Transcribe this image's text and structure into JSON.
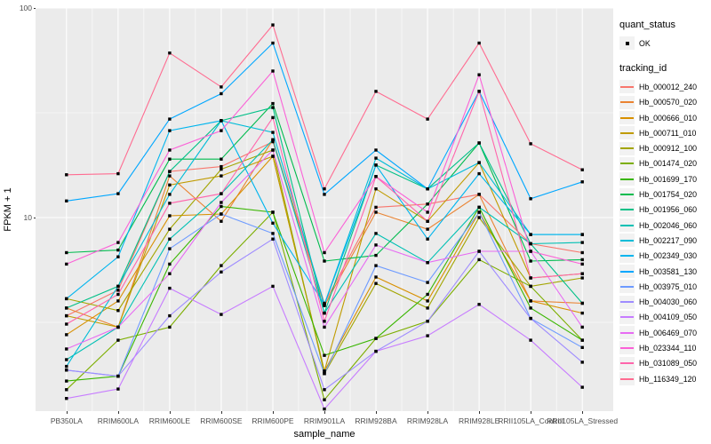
{
  "figure": {
    "y_axis": {
      "title": "FPKM + 1",
      "ticks": [
        {
          "label": "100",
          "value": 100
        },
        {
          "label": "10",
          "value": 10
        }
      ]
    },
    "x_axis": {
      "title": "sample_name"
    },
    "legend": {
      "quant_status": {
        "title": "quant_status",
        "items": [
          {
            "label": "OK"
          }
        ]
      },
      "tracking_id": {
        "title": "tracking_id"
      }
    },
    "colors": {
      "panel_bg": "#EBEBEB",
      "grid": "#FFFFFF",
      "marker": "#000000",
      "tick_text": "#4D4D4D",
      "key_bg": "#F2F2F2"
    }
  },
  "chart_data": {
    "type": "line",
    "title": "",
    "xlabel": "sample_name",
    "ylabel": "FPKM + 1",
    "y_scale": "log10",
    "ylim": [
      1.15,
      99
    ],
    "grid": true,
    "legend_position": "right",
    "x_categories": [
      "PB350LA",
      "RRIM600LA",
      "RRIM600LE",
      "RRIM600SE",
      "RRIM600PE",
      "RRIM901LA",
      "RRIM928BA",
      "RRIM928LA",
      "RRIM928LE",
      "RRII105LA_Control",
      "RRII105LA_Stressed"
    ],
    "series": [
      {
        "name": "Hb_000012_240",
        "color": "#F8766D",
        "values": [
          3.4,
          4.5,
          16.6,
          17.5,
          23.0,
          3.9,
          11.2,
          11.6,
          12.9,
          7.5,
          6.8
        ]
      },
      {
        "name": "Hb_000570_020",
        "color": "#EA8331",
        "values": [
          3.7,
          3.0,
          15.8,
          9.6,
          23.5,
          3.8,
          10.6,
          8.8,
          12.9,
          4.0,
          3.9
        ]
      },
      {
        "name": "Hb_000666_010",
        "color": "#D89000",
        "values": [
          2.76,
          4.0,
          10.2,
          10.4,
          19.6,
          1.85,
          5.2,
          4.0,
          10.6,
          4.0,
          3.5
        ]
      },
      {
        "name": "Hb_000711_010",
        "color": "#C09B00",
        "values": [
          3.4,
          3.0,
          14.3,
          15.8,
          19.6,
          1.85,
          13.7,
          9.6,
          18.3,
          5.15,
          5.4
        ]
      },
      {
        "name": "Hb_000912_100",
        "color": "#A3A500",
        "values": [
          4.1,
          3.6,
          8.8,
          17.0,
          21.0,
          1.8,
          4.85,
          3.7,
          10.0,
          4.7,
          5.15
        ]
      },
      {
        "name": "Hb_001474_020",
        "color": "#7CAE00",
        "values": [
          1.51,
          2.6,
          3.0,
          5.9,
          10.6,
          1.35,
          2.65,
          3.2,
          6.3,
          4.7,
          2.6
        ]
      },
      {
        "name": "Hb_001699_170",
        "color": "#39B600",
        "values": [
          1.66,
          1.75,
          6.0,
          11.3,
          10.6,
          2.2,
          2.65,
          4.3,
          11.2,
          3.7,
          2.6
        ]
      },
      {
        "name": "Hb_001754_020",
        "color": "#00BB4E",
        "values": [
          6.8,
          7.0,
          19.0,
          19.0,
          35.0,
          6.2,
          6.6,
          11.6,
          22.7,
          6.2,
          6.3
        ]
      },
      {
        "name": "Hb_001956_060",
        "color": "#00C087",
        "values": [
          3.7,
          4.7,
          16.6,
          29.0,
          33.5,
          3.5,
          17.8,
          13.7,
          22.7,
          7.5,
          3.9
        ]
      },
      {
        "name": "Hb_002046_060",
        "color": "#00C0B4",
        "values": [
          2.1,
          3.0,
          7.9,
          13.0,
          23.5,
          3.5,
          8.4,
          6.1,
          11.2,
          7.5,
          7.6
        ]
      },
      {
        "name": "Hb_002217_090",
        "color": "#00BCD8",
        "values": [
          1.95,
          4.7,
          12.9,
          29.0,
          25.5,
          3.85,
          19.2,
          13.7,
          18.3,
          8.3,
          8.3
        ]
      },
      {
        "name": "Hb_002349_030",
        "color": "#00B5EE",
        "values": [
          4.1,
          6.5,
          26.0,
          29.0,
          9.4,
          3.85,
          17.8,
          7.9,
          16.2,
          8.3,
          8.3
        ]
      },
      {
        "name": "Hb_003581_130",
        "color": "#00A7FF",
        "values": [
          12.0,
          13.0,
          29.5,
          39.0,
          68.0,
          12.9,
          21.0,
          13.7,
          40.0,
          12.3,
          14.8
        ]
      },
      {
        "name": "Hb_003975_010",
        "color": "#6E9BFF",
        "values": [
          1.87,
          1.75,
          7.1,
          10.4,
          8.4,
          1.8,
          5.9,
          4.9,
          10.6,
          3.3,
          2.4
        ]
      },
      {
        "name": "Hb_004030_060",
        "color": "#9F8CFF",
        "values": [
          1.87,
          1.75,
          3.4,
          5.5,
          7.9,
          1.51,
          2.3,
          3.2,
          6.9,
          3.3,
          2.04
        ]
      },
      {
        "name": "Hb_004109_050",
        "color": "#C77CFF",
        "values": [
          1.37,
          1.52,
          4.6,
          3.45,
          4.7,
          1.22,
          2.3,
          2.73,
          3.85,
          2.6,
          1.55
        ]
      },
      {
        "name": "Hb_006469_070",
        "color": "#E76BF3",
        "values": [
          2.36,
          3.0,
          5.4,
          11.8,
          21.0,
          3.0,
          7.4,
          6.1,
          6.9,
          6.9,
          3.0
        ]
      },
      {
        "name": "Hb_023344_110",
        "color": "#FB61D7",
        "values": [
          6.0,
          7.6,
          21.0,
          26.0,
          50.0,
          6.8,
          15.7,
          10.6,
          48.0,
          6.9,
          6.0
        ]
      },
      {
        "name": "Hb_031089_050",
        "color": "#FF65AC",
        "values": [
          3.1,
          4.3,
          11.7,
          13.0,
          30.0,
          3.2,
          15.7,
          9.6,
          40.0,
          5.15,
          5.4
        ]
      },
      {
        "name": "Hb_116349_120",
        "color": "#FF6C91",
        "values": [
          16.0,
          16.2,
          61.0,
          42.0,
          83.0,
          13.7,
          40.0,
          29.5,
          68.0,
          22.5,
          16.9
        ]
      }
    ]
  }
}
